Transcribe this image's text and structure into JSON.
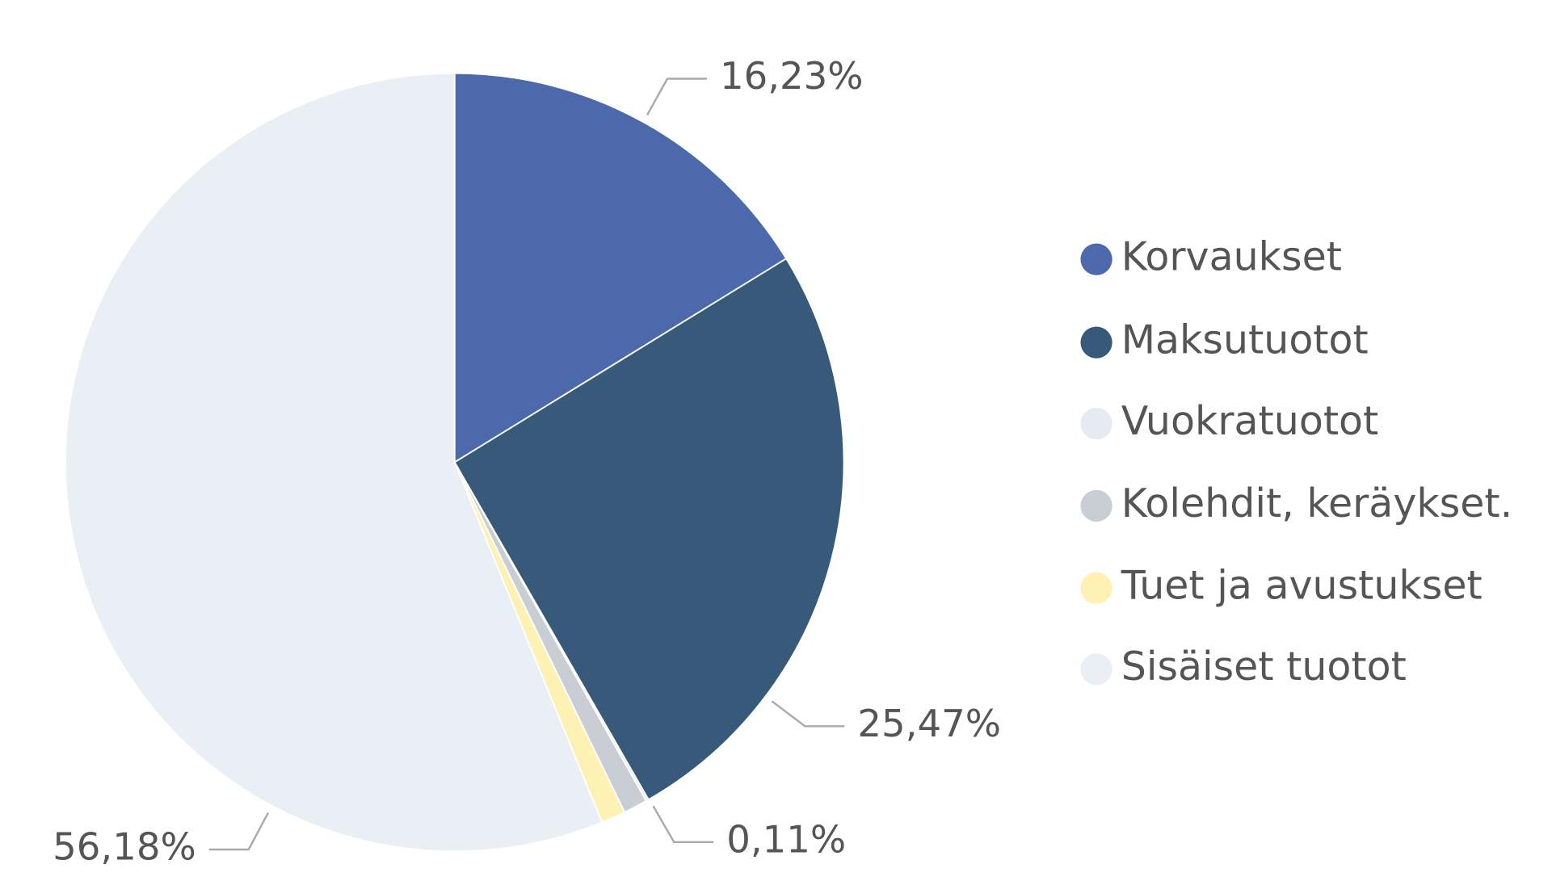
{
  "chart_data": {
    "type": "pie",
    "categories": [
      "Korvaukset",
      "Maksutuotot",
      "Vuokratuotot",
      "Kolehdit, keräykset.",
      "Tuet ja avustukset",
      "Sisäiset tuotot"
    ],
    "values": [
      16.23,
      25.47,
      0.11,
      1.0,
      1.01,
      56.18
    ],
    "value_labels": [
      "16,23%",
      "25,47%",
      "0,11%",
      null,
      null,
      "56,18%"
    ],
    "colors": [
      "#4c69ab",
      "#375a7a",
      "#e6ebf3",
      "#c8ced4",
      "#fdf2b4",
      "#eaeff6"
    ],
    "legend": "right"
  }
}
